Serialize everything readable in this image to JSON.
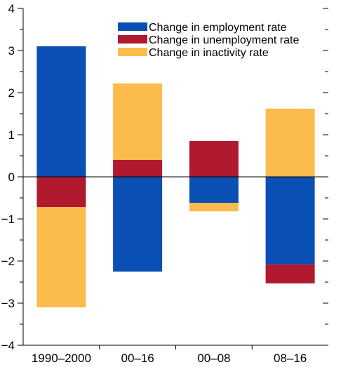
{
  "chart_data": {
    "type": "bar",
    "stacked": true,
    "categories": [
      "1990–2000",
      "00–16",
      "00–08",
      "08–16"
    ],
    "series": [
      {
        "name": "Change in employment rate",
        "color": "#0a50b4",
        "values": [
          3.1,
          -2.25,
          -0.62,
          -2.08
        ]
      },
      {
        "name": "Change in unemployment rate",
        "color": "#b0192e",
        "values": [
          -0.72,
          0.4,
          0.85,
          -0.45
        ]
      },
      {
        "name": "Change in inactivity rate",
        "color": "#fcbb4d",
        "values": [
          -2.38,
          1.82,
          -0.2,
          1.62
        ]
      }
    ],
    "ylim": [
      -4,
      4
    ],
    "yticks": [
      -4,
      -3,
      -2,
      -1,
      0,
      1,
      2,
      3,
      4
    ],
    "ytick_labels": [
      "−4",
      "−3",
      "−2",
      "−1",
      "0",
      "1",
      "2",
      "3",
      "4"
    ],
    "legend_position": "top-right",
    "grid": false,
    "title": "",
    "xlabel": "",
    "ylabel": ""
  }
}
